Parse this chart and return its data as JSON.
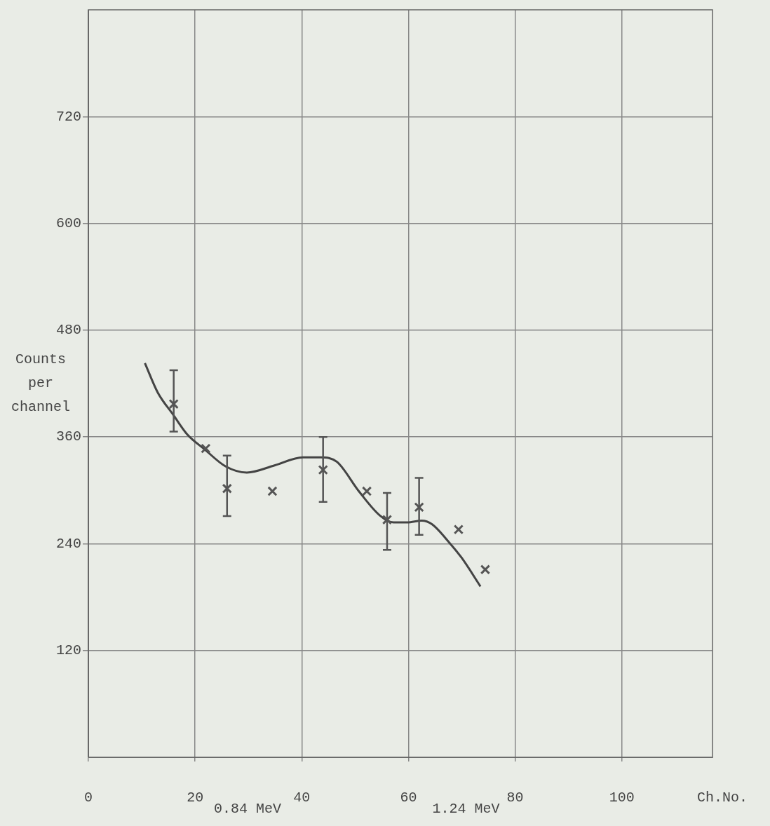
{
  "chart_data": {
    "type": "scatter",
    "xlabel": "Ch.No.",
    "ylabel": "Counts per channel",
    "xlim": [
      0,
      117
    ],
    "ylim": [
      0,
      840
    ],
    "xticks": [
      0,
      20,
      40,
      60,
      80,
      100
    ],
    "yticks": [
      120,
      240,
      360,
      480,
      600,
      720
    ],
    "grid": true,
    "legend": false,
    "line_style": "solid",
    "series": [
      {
        "marker": "cross",
        "color": "#555555",
        "x": [
          16,
          22,
          26,
          34.5,
          44,
          52.2,
          56,
          62,
          69.4,
          74.4
        ],
        "values": [
          397,
          347,
          302,
          299,
          323,
          299,
          267,
          281,
          256,
          211
        ],
        "errors": [
          [
            366,
            435
          ],
          null,
          [
            271,
            339
          ],
          null,
          [
            287,
            360
          ],
          null,
          [
            233,
            297
          ],
          [
            250,
            314
          ],
          null,
          null
        ]
      },
      {
        "type": "line",
        "color": "#444444",
        "x": [
          10.6,
          13,
          15.9,
          18.5,
          21.8,
          25.7,
          29.7,
          34.9,
          40.2,
          43.6,
          46.6,
          50.7,
          54.6,
          57.2,
          59.8,
          62.5,
          64.4,
          67.7,
          70,
          73.5
        ],
        "values": [
          443,
          410,
          385,
          363,
          346,
          327,
          320,
          328,
          337,
          337,
          332,
          299,
          272,
          264,
          264,
          266,
          262,
          241,
          224,
          192
        ]
      }
    ],
    "annotations": [
      "0.84 MeV",
      "1.24 MeV"
    ]
  }
}
